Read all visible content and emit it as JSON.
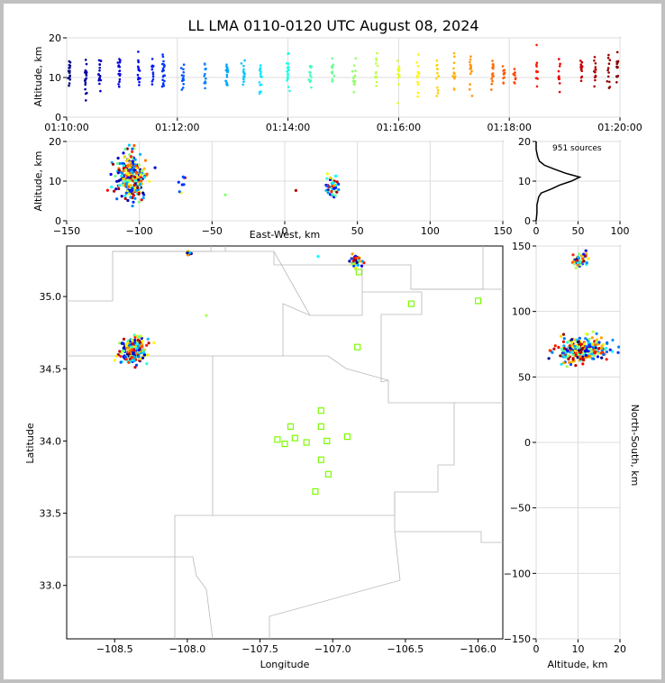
{
  "figure": {
    "title": "LL LMA 0110-0120 UTC August 08, 2024",
    "source_count_label": "951 sources"
  },
  "colors": {
    "frame_bg": "#c0c0c0",
    "station_marker": "#7cfc00",
    "county_lines": "#b8b8b8",
    "grid": "#dcdcdc"
  },
  "chart_data": [
    {
      "id": "altitude_time",
      "type": "scatter",
      "xlabel": "",
      "ylabel": "Altitude, km",
      "x_ticks": [
        "01:10:00",
        "01:12:00",
        "01:14:00",
        "01:16:00",
        "01:18:00",
        "01:20:00"
      ],
      "y_ticks": [
        "0",
        "10",
        "20"
      ],
      "xlim_minutes": [
        0,
        10
      ],
      "ylim": [
        0,
        20
      ],
      "color_by": "time",
      "clusters": [
        {
          "t": 0.05,
          "alt": 11,
          "n": 18
        },
        {
          "t": 0.35,
          "alt": 10,
          "n": 18
        },
        {
          "t": 0.6,
          "alt": 11,
          "n": 16
        },
        {
          "t": 0.95,
          "alt": 11,
          "n": 16
        },
        {
          "t": 1.3,
          "alt": 11,
          "n": 14
        },
        {
          "t": 1.55,
          "alt": 11,
          "n": 12
        },
        {
          "t": 1.75,
          "alt": 11,
          "n": 20
        },
        {
          "t": 2.1,
          "alt": 10,
          "n": 16
        },
        {
          "t": 2.5,
          "alt": 11,
          "n": 14
        },
        {
          "t": 2.9,
          "alt": 11,
          "n": 18
        },
        {
          "t": 3.2,
          "alt": 11,
          "n": 14
        },
        {
          "t": 3.5,
          "alt": 11,
          "n": 14
        },
        {
          "t": 4.0,
          "alt": 11,
          "n": 18
        },
        {
          "t": 4.4,
          "alt": 11,
          "n": 14
        },
        {
          "t": 4.8,
          "alt": 11,
          "n": 14
        },
        {
          "t": 5.2,
          "alt": 11,
          "n": 14
        },
        {
          "t": 5.6,
          "alt": 11,
          "n": 12
        },
        {
          "t": 6.0,
          "alt": 11,
          "n": 14
        },
        {
          "t": 6.35,
          "alt": 11,
          "n": 12
        },
        {
          "t": 6.7,
          "alt": 10,
          "n": 12
        },
        {
          "t": 7.0,
          "alt": 11,
          "n": 14
        },
        {
          "t": 7.3,
          "alt": 11,
          "n": 14
        },
        {
          "t": 7.7,
          "alt": 11,
          "n": 14
        },
        {
          "t": 7.9,
          "alt": 11,
          "n": 12
        },
        {
          "t": 8.1,
          "alt": 11,
          "n": 10
        },
        {
          "t": 8.5,
          "alt": 11,
          "n": 12
        },
        {
          "t": 8.9,
          "alt": 10,
          "n": 10
        },
        {
          "t": 9.3,
          "alt": 11,
          "n": 12
        },
        {
          "t": 9.55,
          "alt": 11,
          "n": 14
        },
        {
          "t": 9.8,
          "alt": 11,
          "n": 12
        },
        {
          "t": 9.95,
          "alt": 11,
          "n": 14
        }
      ]
    },
    {
      "id": "altitude_eastwest",
      "type": "scatter",
      "xlabel": "East-West, km",
      "ylabel": "Altitude, km",
      "x_ticks": [
        "−150",
        "−100",
        "−50",
        "0",
        "50",
        "100",
        "150"
      ],
      "y_ticks": [
        "0",
        "10",
        "20"
      ],
      "xlim": [
        -150,
        150
      ],
      "ylim": [
        0,
        20
      ],
      "clusters": [
        {
          "x": -105,
          "alt": 11,
          "sx": 5,
          "sa": 3,
          "n": 260
        },
        {
          "x": -72,
          "alt": 10,
          "sx": 2,
          "sa": 2,
          "n": 8
        },
        {
          "x": -40,
          "alt": 6.5,
          "sx": 1,
          "sa": 0.5,
          "n": 1
        },
        {
          "x": 8,
          "alt": 7.5,
          "sx": 1,
          "sa": 0.5,
          "n": 1
        },
        {
          "x": 33,
          "alt": 8.5,
          "sx": 2.5,
          "sa": 1.5,
          "n": 40
        }
      ]
    },
    {
      "id": "altitude_histogram",
      "type": "line",
      "xlabel": "",
      "ylabel": "",
      "x_ticks": [
        "0",
        "50",
        "100"
      ],
      "y_ticks": [
        "0",
        "10",
        "20"
      ],
      "xlim": [
        0,
        100
      ],
      "ylim": [
        0,
        20
      ],
      "profile": [
        {
          "alt": 0,
          "count": 0
        },
        {
          "alt": 2,
          "count": 1
        },
        {
          "alt": 4,
          "count": 1
        },
        {
          "alt": 5,
          "count": 2
        },
        {
          "alt": 6,
          "count": 3
        },
        {
          "alt": 7,
          "count": 6
        },
        {
          "alt": 8,
          "count": 18
        },
        {
          "alt": 9,
          "count": 28
        },
        {
          "alt": 10,
          "count": 42
        },
        {
          "alt": 11,
          "count": 52
        },
        {
          "alt": 12,
          "count": 35
        },
        {
          "alt": 13,
          "count": 22
        },
        {
          "alt": 14,
          "count": 10
        },
        {
          "alt": 15,
          "count": 4
        },
        {
          "alt": 16,
          "count": 2
        },
        {
          "alt": 17,
          "count": 1
        },
        {
          "alt": 18,
          "count": 0
        },
        {
          "alt": 20,
          "count": 0
        }
      ]
    },
    {
      "id": "plan_view",
      "type": "scatter",
      "xlabel": "Longitude",
      "ylabel": "Latitude",
      "x_ticks": [
        "−108.5",
        "−108.0",
        "−107.5",
        "−107.0",
        "−106.5",
        "−106.0"
      ],
      "y_ticks": [
        "33.0",
        "33.5",
        "34.0",
        "34.5",
        "35.0"
      ],
      "xlim": [
        -108.83,
        -105.83
      ],
      "ylim": [
        32.63,
        35.35
      ],
      "stations": [
        {
          "lon": -107.38,
          "lat": 34.01
        },
        {
          "lon": -107.33,
          "lat": 33.98
        },
        {
          "lon": -107.29,
          "lat": 34.1
        },
        {
          "lon": -107.26,
          "lat": 34.02
        },
        {
          "lon": -107.18,
          "lat": 33.99
        },
        {
          "lon": -107.08,
          "lat": 34.21
        },
        {
          "lon": -107.08,
          "lat": 34.1
        },
        {
          "lon": -107.08,
          "lat": 33.87
        },
        {
          "lon": -107.04,
          "lat": 34.0
        },
        {
          "lon": -107.03,
          "lat": 33.77
        },
        {
          "lon": -106.9,
          "lat": 34.03
        },
        {
          "lon": -107.12,
          "lat": 33.65
        },
        {
          "lon": -106.83,
          "lat": 34.65
        },
        {
          "lon": -106.82,
          "lat": 35.17
        },
        {
          "lon": -106.46,
          "lat": 34.95
        },
        {
          "lon": -106.0,
          "lat": 34.97
        }
      ],
      "clusters": [
        {
          "lon": -108.37,
          "lat": 34.63,
          "slon": 0.04,
          "slat": 0.04,
          "n": 260
        },
        {
          "lon": -107.99,
          "lat": 35.3,
          "slon": 0.01,
          "slat": 0.01,
          "n": 8
        },
        {
          "lon": -106.84,
          "lat": 35.24,
          "slon": 0.02,
          "slat": 0.02,
          "n": 40
        },
        {
          "lon": -107.87,
          "lat": 34.87,
          "slon": 0.001,
          "slat": 0.001,
          "n": 1
        },
        {
          "lon": -107.1,
          "lat": 35.28,
          "slon": 0.001,
          "slat": 0.001,
          "n": 1
        }
      ]
    },
    {
      "id": "northsouth_altitude",
      "type": "scatter",
      "xlabel": "Altitude, km",
      "ylabel": "North-South, km",
      "x_ticks": [
        "0",
        "10",
        "20"
      ],
      "y_ticks": [
        "−150",
        "−100",
        "−50",
        "0",
        "50",
        "100",
        "150"
      ],
      "xlim": [
        0,
        20
      ],
      "ylim": [
        -150,
        150
      ],
      "clusters": [
        {
          "alt": 11,
          "ns": 70,
          "sa": 3,
          "sns": 5,
          "n": 260
        },
        {
          "alt": 10,
          "ns": 138,
          "sa": 1.2,
          "sns": 2,
          "n": 40
        },
        {
          "alt": 11,
          "ns": 143,
          "sa": 1.5,
          "sns": 2,
          "n": 8
        }
      ]
    }
  ]
}
